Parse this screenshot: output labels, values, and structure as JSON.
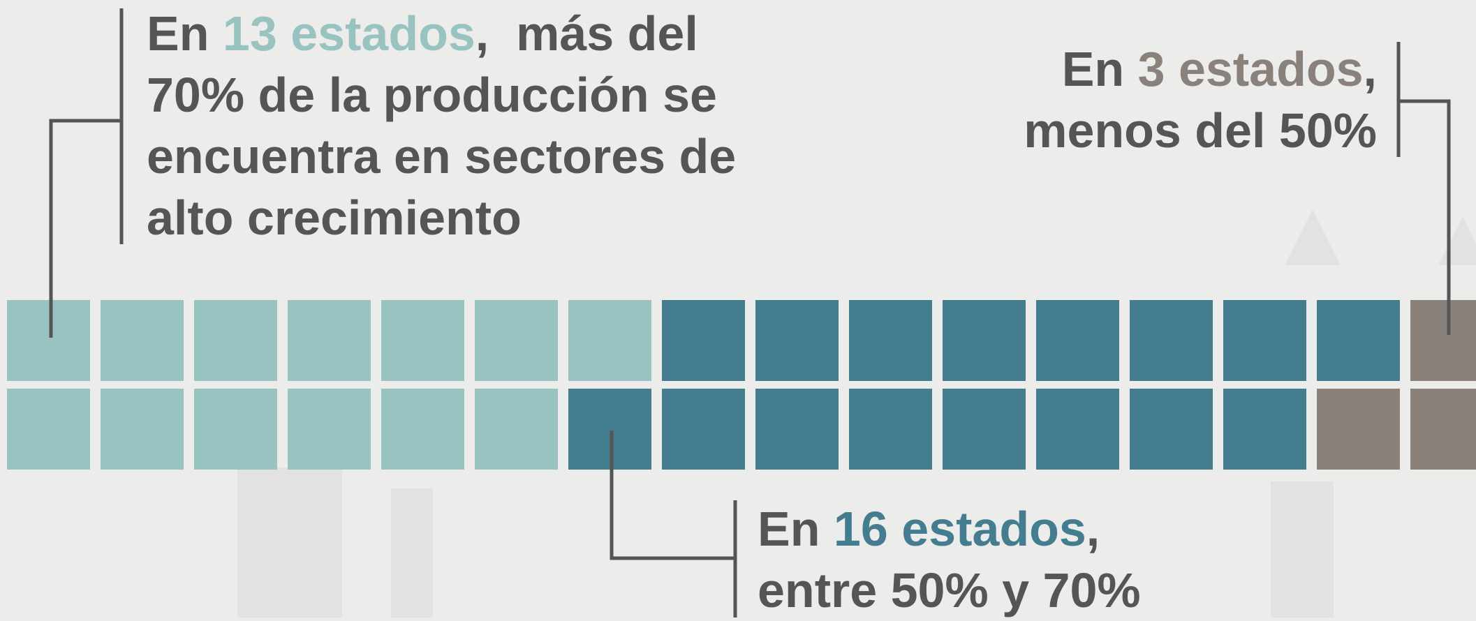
{
  "colors": {
    "high": "#99c3c1",
    "mid": "#457d90",
    "low": "#8a817b",
    "connector": "#555555",
    "text": "#555555"
  },
  "annotations": {
    "high": {
      "line1_pre": "En ",
      "line1_accent": "13 estados",
      "line1_post": ",  más del",
      "line2": "70% de la producción se",
      "line3": "encuentra en sectores de",
      "line4": "alto crecimiento"
    },
    "low": {
      "line1_pre": "En ",
      "line1_accent": "3 estados",
      "line1_post": ",",
      "line2": "menos del 50%"
    },
    "mid": {
      "line1_pre": "En ",
      "line1_accent": "16 estados",
      "line1_post": ",",
      "line2": "entre 50% y 70%"
    }
  },
  "chart_data": {
    "type": "waffle",
    "title": "",
    "series": [
      {
        "key": "high",
        "count": 13
      },
      {
        "key": "mid",
        "count": 16
      },
      {
        "key": "low",
        "count": 3
      }
    ],
    "rows": 2,
    "top_row": [
      "high",
      "high",
      "high",
      "high",
      "high",
      "high",
      "high",
      "mid",
      "mid",
      "mid",
      "mid",
      "mid",
      "mid",
      "mid",
      "mid",
      "low"
    ],
    "bottom_row": [
      "high",
      "high",
      "high",
      "high",
      "high",
      "high",
      "mid",
      "mid",
      "mid",
      "mid",
      "mid",
      "mid",
      "mid",
      "mid",
      "low",
      "low"
    ]
  }
}
